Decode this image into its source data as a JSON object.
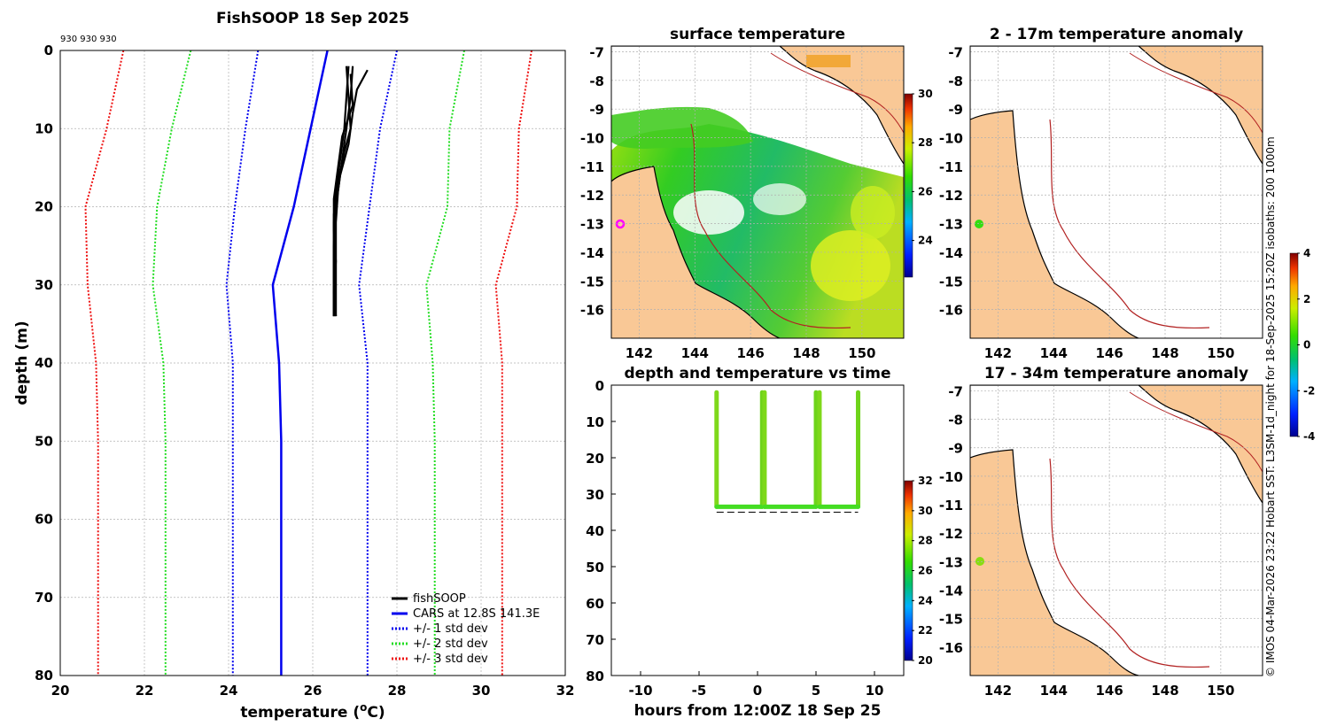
{
  "chart_data": [
    {
      "type": "line",
      "title": "FishSOOP 18 Sep 2025",
      "annotation": "930 930 930",
      "xlabel": "temperature (",
      "xlabel_sup": "o",
      "xlabel_end": "C)",
      "ylabel": "depth (m)",
      "xlim": [
        20,
        32
      ],
      "ylim": [
        0,
        80
      ],
      "xticks": [
        "20",
        "22",
        "24",
        "26",
        "28",
        "30",
        "32"
      ],
      "yticks": [
        "0",
        "10",
        "20",
        "30",
        "40",
        "50",
        "60",
        "70",
        "80"
      ],
      "legend": [
        "fishSOOP",
        "CARS at 12.8S 141.3E",
        "+/- 1 std dev",
        "+/- 2 std dev",
        "+/- 3 std dev"
      ],
      "legend_position": "bottom-right",
      "series": [
        {
          "name": "CARS mean",
          "color": "#0000ee",
          "style": "solid",
          "depth": [
            0,
            10,
            20,
            30,
            40,
            50,
            60,
            70,
            80
          ],
          "temp": [
            26.35,
            25.95,
            25.55,
            25.05,
            25.2,
            25.25,
            25.25,
            25.25,
            25.25
          ]
        },
        {
          "name": "-1 std",
          "color": "#0000ee",
          "style": "dotted",
          "depth": [
            0,
            10,
            20,
            30,
            40,
            50,
            60,
            70,
            80
          ],
          "temp": [
            24.7,
            24.4,
            24.15,
            23.95,
            24.1,
            24.1,
            24.1,
            24.1,
            24.1
          ]
        },
        {
          "name": "+1 std",
          "color": "#0000ee",
          "style": "dotted",
          "depth": [
            0,
            10,
            20,
            30,
            40,
            50,
            60,
            70,
            80
          ],
          "temp": [
            28.0,
            27.6,
            27.35,
            27.1,
            27.3,
            27.3,
            27.3,
            27.3,
            27.3
          ]
        },
        {
          "name": "-2 std",
          "color": "#22dd22",
          "style": "dotted",
          "depth": [
            0,
            10,
            20,
            30,
            40,
            50,
            60,
            70,
            80
          ],
          "temp": [
            23.1,
            22.65,
            22.3,
            22.2,
            22.45,
            22.5,
            22.5,
            22.5,
            22.5
          ]
        },
        {
          "name": "+2 std",
          "color": "#22dd22",
          "style": "dotted",
          "depth": [
            0,
            10,
            20,
            30,
            40,
            50,
            60,
            70,
            80
          ],
          "temp": [
            29.6,
            29.25,
            29.2,
            28.7,
            28.85,
            28.9,
            28.9,
            28.9,
            28.9
          ]
        },
        {
          "name": "-3 std",
          "color": "#ee1111",
          "style": "dotted",
          "depth": [
            0,
            10,
            20,
            30,
            40,
            50,
            60,
            70,
            80
          ],
          "temp": [
            21.5,
            21.1,
            20.6,
            20.65,
            20.85,
            20.9,
            20.9,
            20.9,
            20.9
          ]
        },
        {
          "name": "+3 std",
          "color": "#ee1111",
          "style": "dotted",
          "depth": [
            0,
            10,
            20,
            30,
            40,
            50,
            60,
            70,
            80
          ],
          "temp": [
            31.2,
            30.9,
            30.85,
            30.35,
            30.5,
            30.5,
            30.5,
            30.5,
            30.5
          ]
        }
      ],
      "profiles": [
        {
          "depth": [
            2,
            6,
            10,
            14,
            18,
            22,
            26,
            30,
            34
          ],
          "temp": [
            26.85,
            26.8,
            26.75,
            26.65,
            26.55,
            26.5,
            26.5,
            26.5,
            26.5
          ]
        },
        {
          "depth": [
            2,
            6,
            10,
            14,
            18,
            22,
            26,
            30,
            34
          ],
          "temp": [
            26.95,
            26.9,
            26.8,
            26.7,
            26.6,
            26.55,
            26.55,
            26.55,
            26.55
          ]
        },
        {
          "depth": [
            2.5,
            5,
            8,
            12,
            16,
            20,
            25,
            30,
            34
          ],
          "temp": [
            27.3,
            27.05,
            26.95,
            26.85,
            26.65,
            26.55,
            26.5,
            26.5,
            26.5
          ]
        },
        {
          "depth": [
            2,
            6,
            10,
            13,
            17,
            21,
            26,
            31,
            34
          ],
          "temp": [
            26.8,
            26.85,
            26.9,
            26.75,
            26.6,
            26.5,
            26.5,
            26.5,
            26.5
          ]
        },
        {
          "depth": [
            3,
            7,
            11,
            15,
            19,
            23,
            27,
            31,
            34
          ],
          "temp": [
            26.9,
            26.95,
            26.7,
            26.6,
            26.5,
            26.5,
            26.55,
            26.5,
            26.55
          ]
        }
      ]
    },
    {
      "type": "heatmap",
      "title": "surface temperature",
      "xticks": [
        "142",
        "144",
        "146",
        "148",
        "150"
      ],
      "yticks": [
        "-7",
        "-8",
        "-9",
        "-10",
        "-11",
        "-12",
        "-13",
        "-14",
        "-15",
        "-16"
      ],
      "xlim": [
        141,
        151.5
      ],
      "ylim": [
        -17,
        -6.8
      ],
      "colorbar": {
        "ticks": [
          "24",
          "26",
          "28",
          "30"
        ],
        "range": [
          22.5,
          30
        ]
      }
    },
    {
      "type": "scatter",
      "title": "depth and temperature vs time",
      "xlabel": "hours from 12:00Z 18 Sep 25",
      "xlim": [
        -12.5,
        12.5
      ],
      "ylim": [
        0,
        80
      ],
      "xticks": [
        "-10",
        "-5",
        "0",
        "5",
        "10"
      ],
      "yticks": [
        "0",
        "10",
        "20",
        "30",
        "40",
        "50",
        "60",
        "70",
        "80"
      ],
      "casts": [
        {
          "start": -3.5,
          "end": 0.4,
          "bottom": 33
        },
        {
          "start": 0.6,
          "end": 5.0,
          "bottom": 33
        },
        {
          "start": 5.3,
          "end": 8.6,
          "bottom": 33
        }
      ],
      "colorbar": {
        "ticks": [
          "20",
          "22",
          "24",
          "26",
          "28",
          "30",
          "32"
        ],
        "range": [
          20,
          32
        ]
      }
    },
    {
      "type": "heatmap",
      "title": "2 - 17m temperature anomaly",
      "xticks": [
        "142",
        "144",
        "146",
        "148",
        "150"
      ],
      "yticks": [
        "-7",
        "-8",
        "-9",
        "-10",
        "-11",
        "-12",
        "-13",
        "-14",
        "-15",
        "-16"
      ],
      "xlim": [
        141,
        151.5
      ],
      "ylim": [
        -17,
        -6.8
      ],
      "colorbar": {
        "ticks": [
          "4",
          "2",
          "0",
          "-2",
          "-4"
        ],
        "range": [
          -4,
          4
        ]
      }
    },
    {
      "type": "heatmap",
      "title": "17 - 34m temperature anomaly",
      "xticks": [
        "142",
        "144",
        "146",
        "148",
        "150"
      ],
      "yticks": [
        "-7",
        "-8",
        "-9",
        "-10",
        "-11",
        "-12",
        "-13",
        "-14",
        "-15",
        "-16"
      ],
      "xlim": [
        141,
        151.5
      ],
      "ylim": [
        -17,
        -6.8
      ]
    }
  ],
  "credit": "© IMOS 04-Mar-2026 23:22 Hobart SST: L3SM-1d_night for 18-Sep-2025 15:20Z isobaths: 200  1000m",
  "colors": {
    "land": "#f9c896",
    "coast": "#000000",
    "isobath": "#b22222",
    "ocean_blank": "#ffffff"
  }
}
